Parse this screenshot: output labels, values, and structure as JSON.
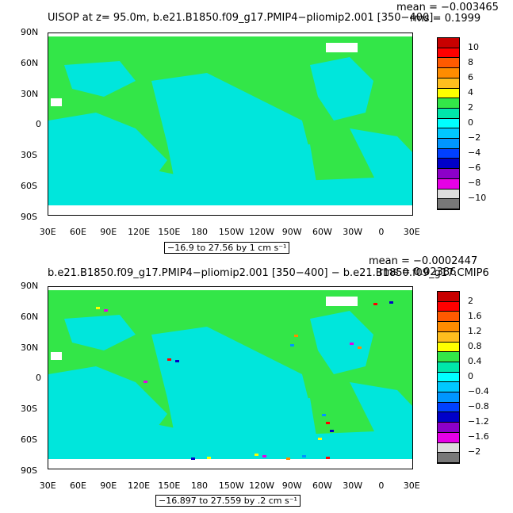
{
  "panels": [
    {
      "title": "UISOP at z=  95.0m, b.e21.B1850.f09_g17.PMIP4−pliomip2.001 [350−400]",
      "mean": "mean = −0.003465",
      "rms": "rms = 0.1999",
      "range_label": "−16.9 to 27.56 by 1 cm s⁻¹",
      "lat_labels": [
        "90N",
        "60N",
        "30N",
        "0",
        "30S",
        "60S",
        "90S"
      ],
      "lon_labels": [
        "30E",
        "60E",
        "90E",
        "120E",
        "150E",
        "180",
        "150W",
        "120W",
        "90W",
        "60W",
        "30W",
        "0",
        "30E"
      ],
      "legend_labels": [
        "10",
        "8",
        "6",
        "4",
        "2",
        "0",
        "−2",
        "−4",
        "−6",
        "−8",
        "−10"
      ],
      "legend_colors": [
        "#c80000",
        "#ff0000",
        "#ff5a00",
        "#ff8c00",
        "#ffbe1e",
        "#ffff00",
        "#33e648",
        "#00e6aa",
        "#00ffff",
        "#00c8ff",
        "#0096ff",
        "#0040ff",
        "#0000c8",
        "#8c00c8",
        "#e600e6",
        "#dcdcdc",
        "#787878"
      ]
    },
    {
      "title": "b.e21.B1850.f09_g17.PMIP4−pliomip2.001 [350−400] − b.e21.B1850.f09_g17.CMIP6",
      "mean": "mean = −0.0002447",
      "rms": "rms = 0.02386",
      "range_label": "−16.897 to 27.559 by .2 cm s⁻¹",
      "lat_labels": [
        "90N",
        "60N",
        "30N",
        "0",
        "30S",
        "60S",
        "90S"
      ],
      "lon_labels": [
        "30E",
        "60E",
        "90E",
        "120E",
        "150E",
        "180",
        "150W",
        "120W",
        "90W",
        "60W",
        "30W",
        "0",
        "30E"
      ],
      "legend_labels": [
        "2",
        "1.6",
        "1.2",
        "0.8",
        "0.4",
        "0",
        "−0.4",
        "−0.8",
        "−1.2",
        "−1.6",
        "−2"
      ],
      "legend_colors": [
        "#c80000",
        "#ff0000",
        "#ff5a00",
        "#ff8c00",
        "#ffbe1e",
        "#ffff00",
        "#33e648",
        "#00e6aa",
        "#00ffff",
        "#00c8ff",
        "#0096ff",
        "#0040ff",
        "#0000c8",
        "#8c00c8",
        "#e600e6",
        "#dcdcdc",
        "#787878"
      ]
    }
  ],
  "colors": {
    "land_fill": "#33e648",
    "ocean_fill": "#00e6dc",
    "missing": "#ffffff"
  }
}
